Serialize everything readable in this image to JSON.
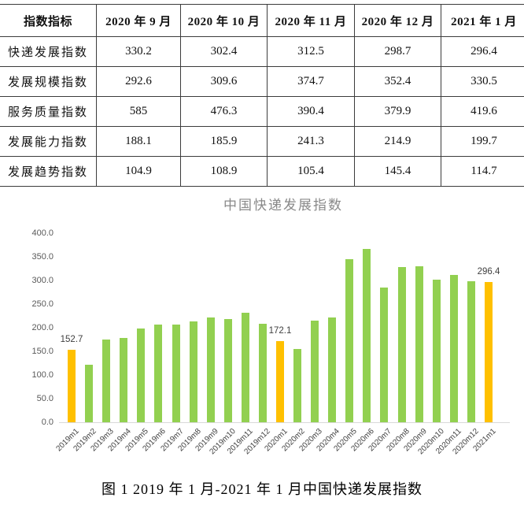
{
  "table": {
    "header": [
      "指数指标",
      "2020 年 9 月",
      "2020 年 10 月",
      "2020 年 11 月",
      "2020 年 12 月",
      "2021 年 1 月"
    ],
    "rows": [
      {
        "label": "快递发展指数",
        "values": [
          "330.2",
          "302.4",
          "312.5",
          "298.7",
          "296.4"
        ]
      },
      {
        "label": "发展规模指数",
        "values": [
          "292.6",
          "309.6",
          "374.7",
          "352.4",
          "330.5"
        ]
      },
      {
        "label": "服务质量指数",
        "values": [
          "585",
          "476.3",
          "390.4",
          "379.9",
          "419.6"
        ]
      },
      {
        "label": "发展能力指数",
        "values": [
          "188.1",
          "185.9",
          "241.3",
          "214.9",
          "199.7"
        ]
      },
      {
        "label": "发展趋势指数",
        "values": [
          "104.9",
          "108.9",
          "105.4",
          "145.4",
          "114.7"
        ]
      }
    ]
  },
  "chart_data": {
    "type": "bar",
    "title": "中国快递发展指数",
    "categories": [
      "2019m1",
      "2019m2",
      "2019m3",
      "2019m4",
      "2019m5",
      "2019m6",
      "2019m7",
      "2019m8",
      "2019m9",
      "2019m10",
      "2019m11",
      "2019m12",
      "2020m1",
      "2020m2",
      "2020m3",
      "2020m4",
      "2020m5",
      "2020m6",
      "2020m7",
      "2020m8",
      "2020m9",
      "2020m10",
      "2020m11",
      "2020m12",
      "2021m1"
    ],
    "values": [
      152.7,
      121,
      175,
      178,
      198,
      207,
      206,
      213,
      222,
      218,
      231,
      209,
      172.1,
      155,
      215,
      221,
      345,
      366,
      285,
      328,
      330.2,
      302.4,
      312.5,
      298.7,
      296.4
    ],
    "highlight_categories": [
      "2019m1",
      "2020m1",
      "2021m1"
    ],
    "data_labels": {
      "2019m1": "152.7",
      "2020m1": "172.1",
      "2021m1": "296.4"
    },
    "colors": {
      "bar": "#92D050",
      "highlight": "#FFC000",
      "axis_line": "#d9d9d9"
    },
    "xlabel": "",
    "ylabel": "",
    "ylim": [
      0,
      400
    ],
    "ytick_step": 50,
    "grid": false,
    "legend_position": "none"
  },
  "caption": "图 1 2019 年 1 月-2021 年 1 月中国快递发展指数"
}
